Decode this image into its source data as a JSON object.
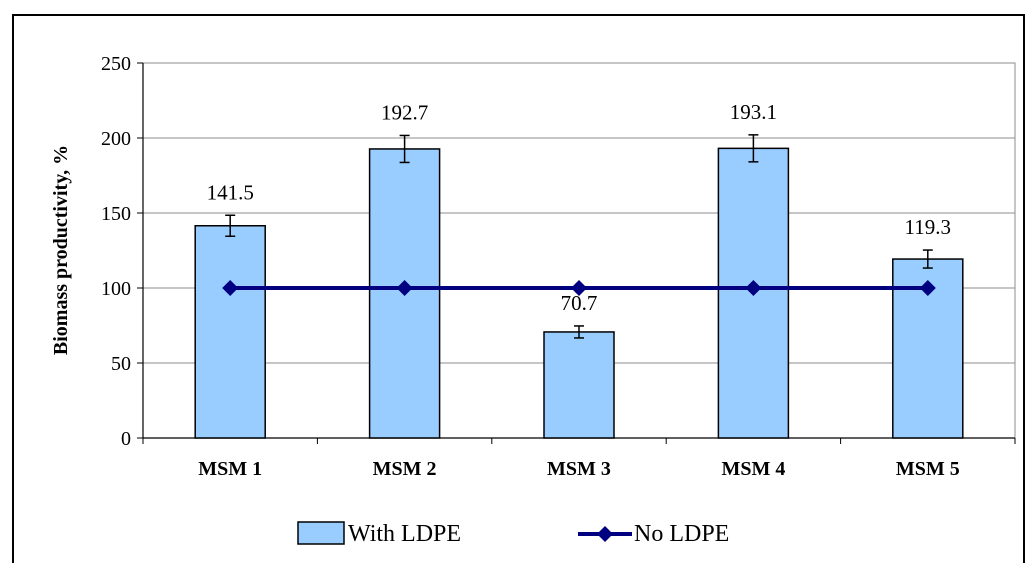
{
  "chart_data": {
    "type": "bar",
    "categories": [
      "MSM 1",
      "MSM 2",
      "MSM 3",
      "MSM 4",
      "MSM 5"
    ],
    "series": [
      {
        "name": "With LDPE",
        "kind": "bar",
        "values": [
          141.5,
          192.7,
          70.7,
          193.1,
          119.3
        ],
        "errors": [
          7,
          9,
          4,
          9,
          6
        ],
        "data_labels": [
          "141.5",
          "192.7",
          "70.7",
          "193.1",
          "119.3"
        ],
        "color": "#99ccff"
      },
      {
        "name": "No LDPE",
        "kind": "line",
        "values": [
          100,
          100,
          100,
          100,
          100
        ],
        "color": "#000080"
      }
    ],
    "title": "",
    "xlabel": "",
    "ylabel": "Biomass productivity, %",
    "ylim": [
      0,
      250
    ],
    "yticks": [
      0,
      50,
      100,
      150,
      200,
      250
    ],
    "grid": true,
    "legend_position": "bottom"
  }
}
